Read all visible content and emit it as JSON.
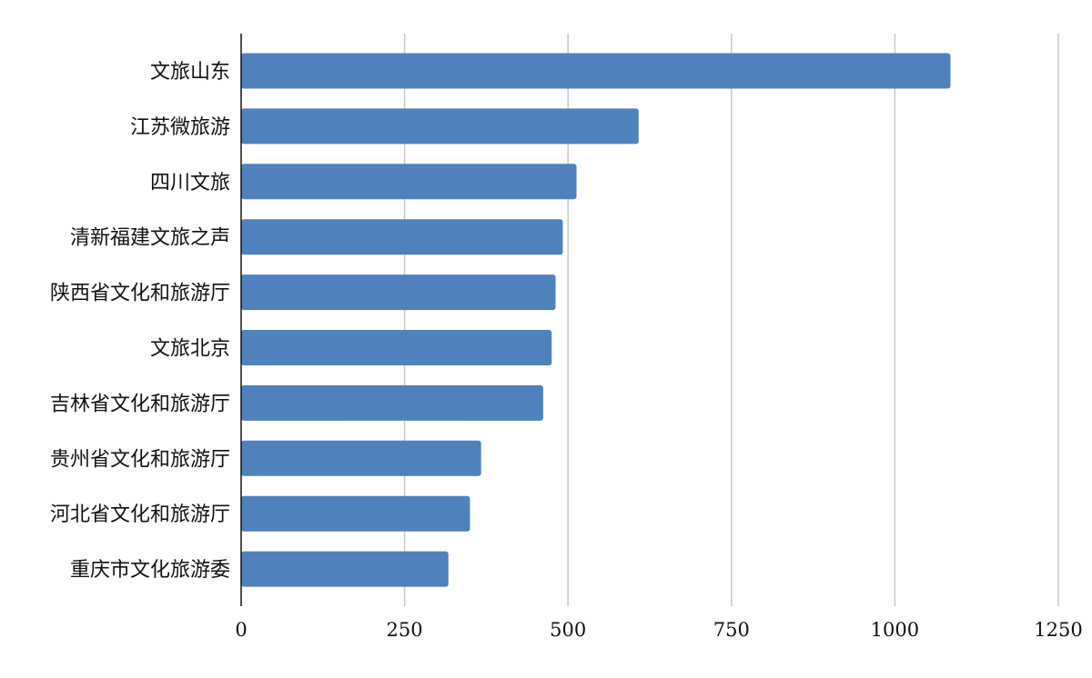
{
  "chart_data": {
    "type": "bar",
    "orientation": "horizontal",
    "categories": [
      "文旅山东",
      "江苏微旅游",
      "四川文旅",
      "清新福建文旅之声",
      "陕西省文化和旅游厅",
      "文旅北京",
      "吉林省文化和旅游厅",
      "贵州省文化和旅游厅",
      "河北省文化和旅游厅",
      "重庆市文化旅游委"
    ],
    "values": [
      1085,
      608,
      513,
      492,
      481,
      475,
      462,
      367,
      350,
      317
    ],
    "xlim": [
      0,
      1250
    ],
    "ticks": [
      0,
      250,
      500,
      750,
      1000,
      1250
    ],
    "tick_labels": [
      "0",
      "250",
      "500",
      "750",
      "1000",
      "1250"
    ],
    "title": "",
    "xlabel": "",
    "ylabel": "",
    "grid": "vertical",
    "legend": "none",
    "bar_color": "#4f81bd",
    "grid_color": "#c8c8c8",
    "axis_color": "#111111"
  }
}
